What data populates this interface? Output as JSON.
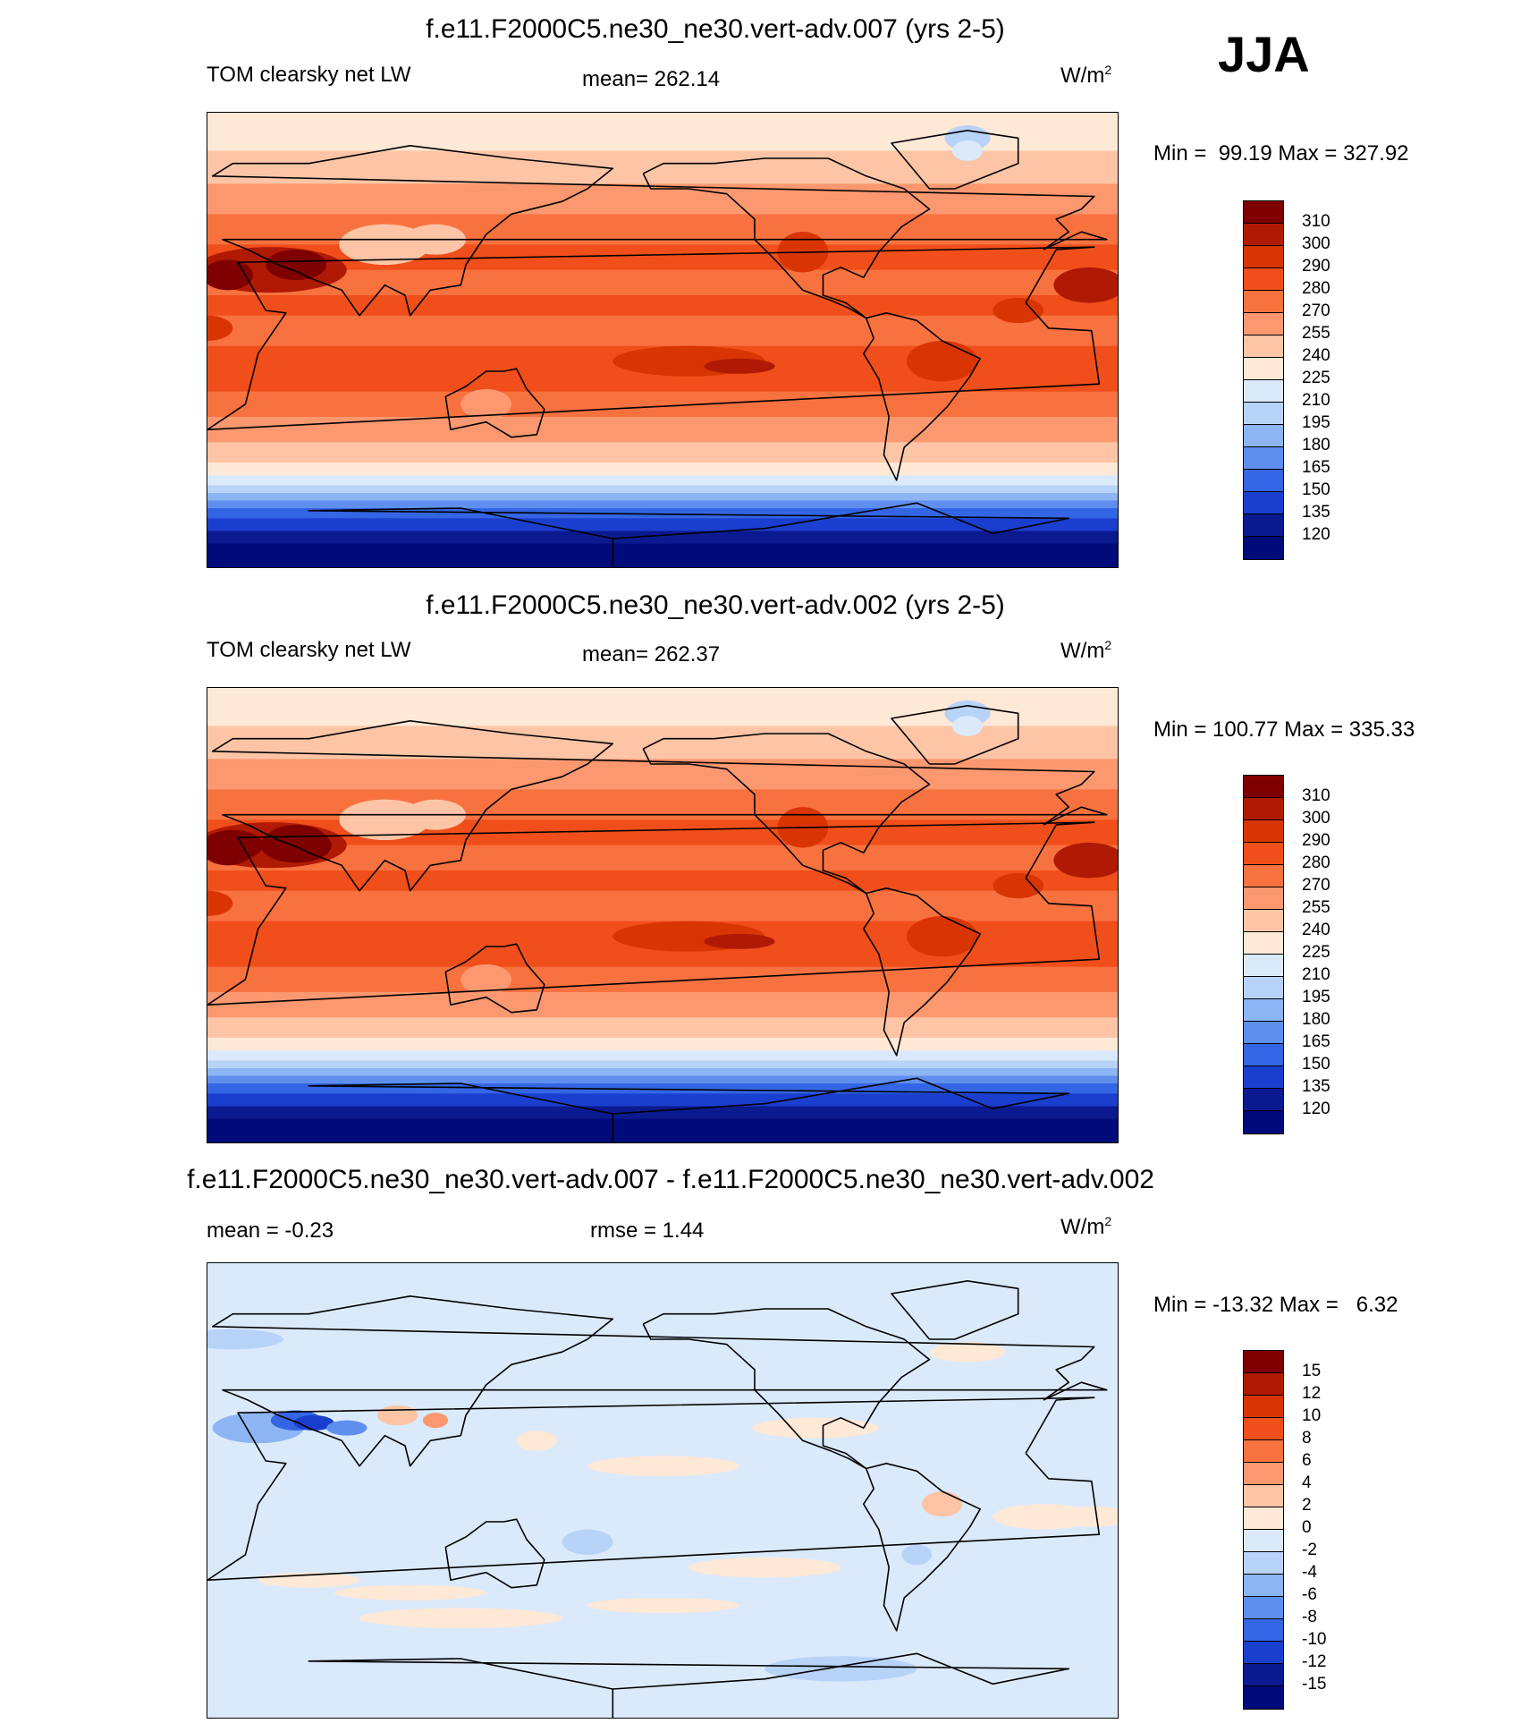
{
  "season": "JJA",
  "units_label": "W/m",
  "units_sup": "2",
  "panels": [
    {
      "title": "f.e11.F2000C5.ne30_ne30.vert-adv.007 (yrs 2-5)",
      "left_label": "TOM clearsky net LW",
      "center_label": "mean= 262.14",
      "minmax": "Min =  99.19 Max = 327.92",
      "colorbar": {
        "levels": [
          "310",
          "300",
          "290",
          "280",
          "270",
          "255",
          "240",
          "225",
          "210",
          "195",
          "180",
          "165",
          "150",
          "135",
          "120"
        ],
        "colors": [
          "#7f0000",
          "#b01a04",
          "#d93503",
          "#f04e1a",
          "#f87240",
          "#fb9870",
          "#fdc5a6",
          "#fee8d6",
          "#dbeafb",
          "#b8d3f8",
          "#8db5f4",
          "#5f8fee",
          "#3465e4",
          "#1a3fcf",
          "#0c1a8f",
          "#000a78"
        ]
      },
      "field": "abs1"
    },
    {
      "title": "f.e11.F2000C5.ne30_ne30.vert-adv.002 (yrs 2-5)",
      "left_label": "TOM clearsky net LW",
      "center_label": "mean= 262.37",
      "minmax": "Min = 100.77 Max = 335.33",
      "colorbar": {
        "levels": [
          "310",
          "300",
          "290",
          "280",
          "270",
          "255",
          "240",
          "225",
          "210",
          "195",
          "180",
          "165",
          "150",
          "135",
          "120"
        ],
        "colors": [
          "#7f0000",
          "#b01a04",
          "#d93503",
          "#f04e1a",
          "#f87240",
          "#fb9870",
          "#fdc5a6",
          "#fee8d6",
          "#dbeafb",
          "#b8d3f8",
          "#8db5f4",
          "#5f8fee",
          "#3465e4",
          "#1a3fcf",
          "#0c1a8f",
          "#000a78"
        ]
      },
      "field": "abs2"
    },
    {
      "title": "f.e11.F2000C5.ne30_ne30.vert-adv.007 - f.e11.F2000C5.ne30_ne30.vert-adv.002",
      "left_label": "mean =  -0.23",
      "center_label": "rmse =   1.44",
      "minmax": "Min = -13.32 Max =   6.32",
      "colorbar": {
        "levels": [
          "15",
          "12",
          "10",
          "8",
          "6",
          "4",
          "2",
          "0",
          "-2",
          "-4",
          "-6",
          "-8",
          "-10",
          "-12",
          "-15"
        ],
        "colors": [
          "#7f0000",
          "#b01a04",
          "#d93503",
          "#f04e1a",
          "#f87240",
          "#fb9870",
          "#fdc5a6",
          "#fee8d6",
          "#dbeafb",
          "#b8d3f8",
          "#8db5f4",
          "#5f8fee",
          "#3465e4",
          "#1a3fcf",
          "#0c1a8f",
          "#000a78"
        ]
      },
      "field": "diff"
    }
  ],
  "chart_data": [
    {
      "type": "heatmap",
      "title": "f.e11.F2000C5.ne30_ne30.vert-adv.007 (yrs 2-5)",
      "variable": "TOM clearsky net LW",
      "units": "W/m2",
      "mean": 262.14,
      "min": 99.19,
      "max": 327.92,
      "contour_levels": [
        120,
        135,
        150,
        165,
        180,
        195,
        210,
        225,
        240,
        255,
        270,
        280,
        290,
        300,
        310
      ]
    },
    {
      "type": "heatmap",
      "title": "f.e11.F2000C5.ne30_ne30.vert-adv.002 (yrs 2-5)",
      "variable": "TOM clearsky net LW",
      "units": "W/m2",
      "mean": 262.37,
      "min": 100.77,
      "max": 335.33,
      "contour_levels": [
        120,
        135,
        150,
        165,
        180,
        195,
        210,
        225,
        240,
        255,
        270,
        280,
        290,
        300,
        310
      ]
    },
    {
      "type": "heatmap",
      "title": "f.e11.F2000C5.ne30_ne30.vert-adv.007 - f.e11.F2000C5.ne30_ne30.vert-adv.002",
      "units": "W/m2",
      "mean": -0.23,
      "rmse": 1.44,
      "min": -13.32,
      "max": 6.32,
      "contour_levels": [
        -15,
        -12,
        -10,
        -8,
        -6,
        -4,
        -2,
        0,
        2,
        4,
        6,
        8,
        10,
        12,
        15
      ]
    }
  ]
}
